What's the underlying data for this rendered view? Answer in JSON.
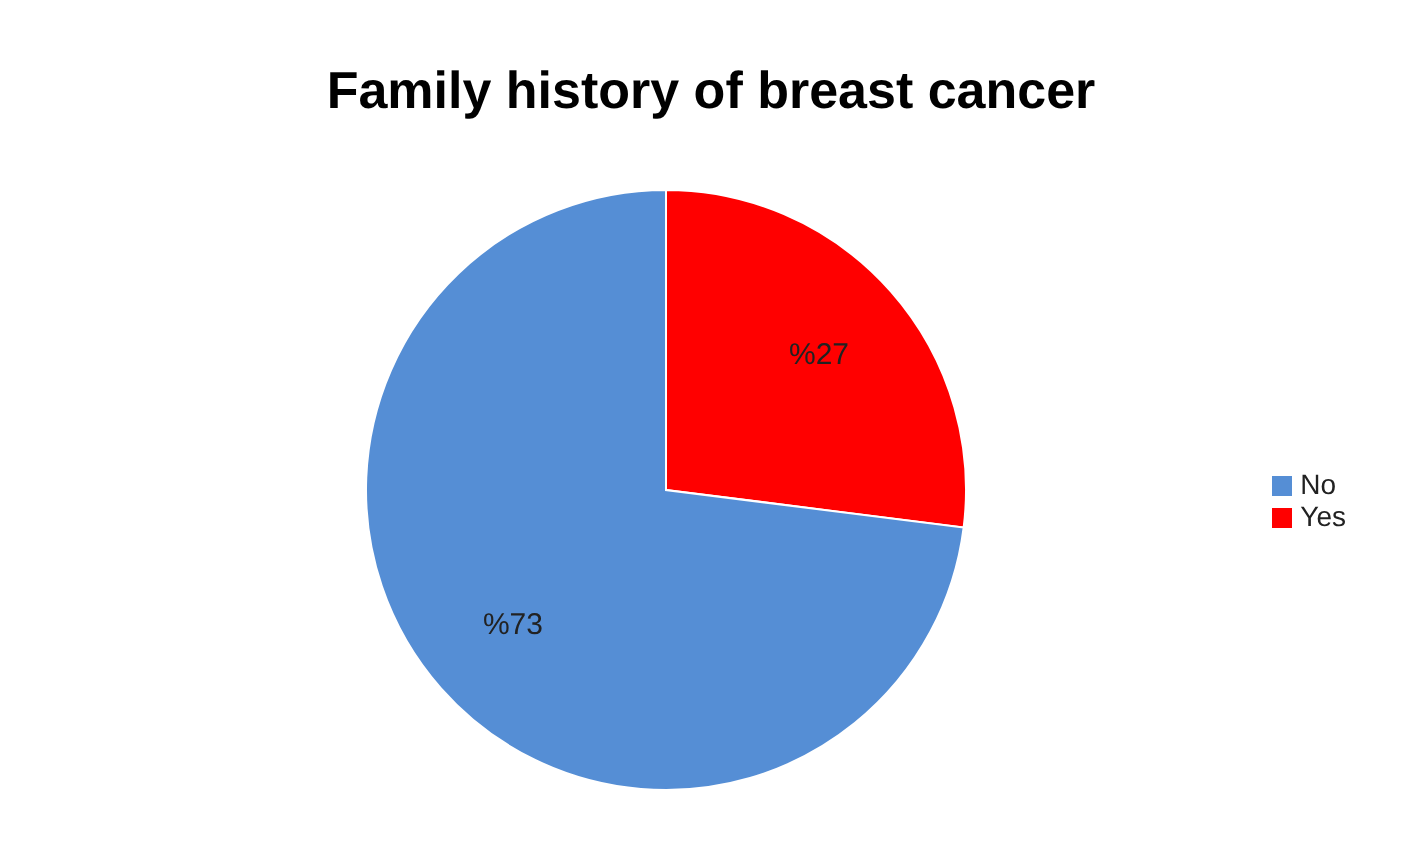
{
  "chart_data": {
    "type": "pie",
    "title": "Family history of breast cancer",
    "categories": [
      "Yes",
      "No"
    ],
    "values": [
      27,
      73
    ],
    "value_labels": [
      "%27",
      "%73"
    ],
    "colors": [
      "#ff0000",
      "#558ed5"
    ],
    "legend": "right"
  }
}
